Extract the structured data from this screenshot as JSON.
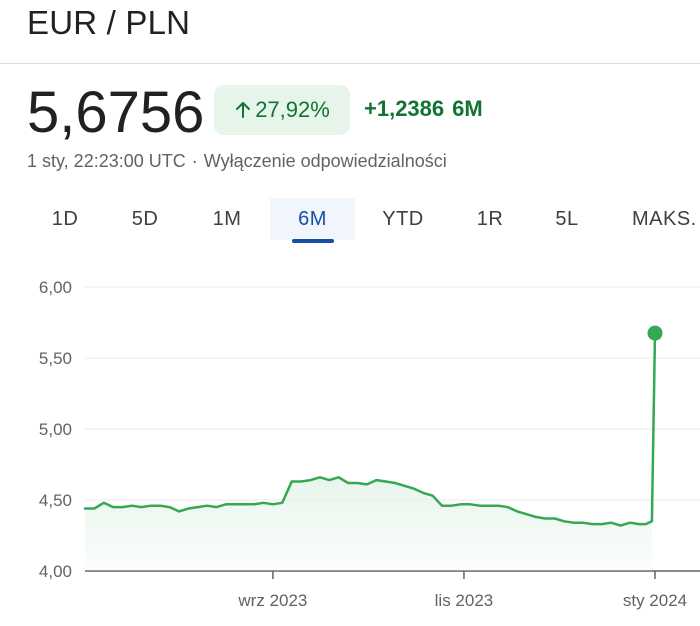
{
  "header": {
    "title": "EUR / PLN"
  },
  "quote": {
    "price": "5,6756",
    "change_percent": "27,92%",
    "change_abs": "+1,2386",
    "change_period": "6M",
    "timestamp": "1 sty, 22:23:00 UTC",
    "disclaimer": "Wyłączenie odpowiedzialności",
    "up_color": "#137333",
    "badge_bg": "#e6f4ea"
  },
  "tabs": [
    {
      "label": "1D",
      "active": false
    },
    {
      "label": "5D",
      "active": false
    },
    {
      "label": "1M",
      "active": false
    },
    {
      "label": "6M",
      "active": true
    },
    {
      "label": "YTD",
      "active": false
    },
    {
      "label": "1R",
      "active": false
    },
    {
      "label": "5L",
      "active": false
    },
    {
      "label": "MAKS.",
      "active": false
    }
  ],
  "chart_data": {
    "type": "area",
    "title": "",
    "xlabel": "",
    "ylabel": "",
    "ylim": [
      4.0,
      6.0
    ],
    "y_ticks": [
      "6,00",
      "5,50",
      "5,00",
      "4,50",
      "4,00"
    ],
    "y_tick_values": [
      6.0,
      5.5,
      5.0,
      4.5,
      4.0
    ],
    "x_tick_labels": [
      "wrz 2023",
      "lis 2023",
      "sty 2024"
    ],
    "grid": true,
    "line_color": "#34a853",
    "fill_color": "#e6f4ea",
    "series": [
      {
        "x": [
          "2023-07-03",
          "2023-07-06",
          "2023-07-09",
          "2023-07-12",
          "2023-07-15",
          "2023-07-18",
          "2023-07-21",
          "2023-07-24",
          "2023-07-27",
          "2023-07-30",
          "2023-08-02",
          "2023-08-05",
          "2023-08-08",
          "2023-08-11",
          "2023-08-14",
          "2023-08-17",
          "2023-08-20",
          "2023-08-23",
          "2023-08-26",
          "2023-08-29",
          "2023-09-01",
          "2023-09-04",
          "2023-09-07",
          "2023-09-10",
          "2023-09-13",
          "2023-09-16",
          "2023-09-19",
          "2023-09-22",
          "2023-09-25",
          "2023-09-28",
          "2023-10-01",
          "2023-10-04",
          "2023-10-07",
          "2023-10-10",
          "2023-10-13",
          "2023-10-16",
          "2023-10-19",
          "2023-10-22",
          "2023-10-25",
          "2023-10-28",
          "2023-10-31",
          "2023-11-03",
          "2023-11-06",
          "2023-11-09",
          "2023-11-12",
          "2023-11-15",
          "2023-11-18",
          "2023-11-21",
          "2023-11-24",
          "2023-11-27",
          "2023-11-30",
          "2023-12-03",
          "2023-12-06",
          "2023-12-09",
          "2023-12-12",
          "2023-12-15",
          "2023-12-18",
          "2023-12-21",
          "2023-12-24",
          "2023-12-27",
          "2023-12-29",
          "2023-12-31",
          "2024-01-01"
        ],
        "y": [
          4.44,
          4.44,
          4.48,
          4.45,
          4.45,
          4.46,
          4.45,
          4.46,
          4.46,
          4.45,
          4.42,
          4.44,
          4.45,
          4.46,
          4.45,
          4.47,
          4.47,
          4.47,
          4.47,
          4.48,
          4.47,
          4.48,
          4.63,
          4.63,
          4.64,
          4.66,
          4.64,
          4.66,
          4.62,
          4.62,
          4.61,
          4.64,
          4.63,
          4.62,
          4.6,
          4.58,
          4.55,
          4.53,
          4.46,
          4.46,
          4.47,
          4.47,
          4.46,
          4.46,
          4.46,
          4.45,
          4.42,
          4.4,
          4.38,
          4.37,
          4.37,
          4.35,
          4.34,
          4.34,
          4.33,
          4.33,
          4.34,
          4.32,
          4.34,
          4.33,
          4.33,
          4.35,
          5.6756
        ]
      }
    ],
    "endpoint_marker": true
  }
}
